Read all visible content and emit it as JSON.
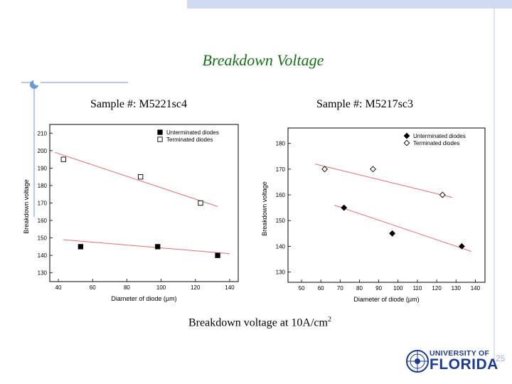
{
  "slide": {
    "title": "Breakdown Voltage",
    "sample_left": "Sample #: M5221sc4",
    "sample_right": "Sample #: M5217sc3",
    "caption_main": "Breakdown voltage at 10A/cm",
    "caption_sup": "2",
    "logo_line1": "UNIVERSITY OF",
    "logo_line2": "FLORIDA",
    "page_number": "25"
  },
  "colors": {
    "title": "#1a6e1a",
    "fit_line": "#e07070",
    "logo": "#1d3b8a",
    "accent": "#cfdcf0"
  },
  "chart_data": [
    {
      "type": "scatter",
      "xlabel": "Diameter of diode (μm)",
      "ylabel": "Breakdown voltage",
      "xlim": [
        35,
        145
      ],
      "ylim": [
        125,
        215
      ],
      "xticks": [
        40,
        60,
        80,
        100,
        120,
        140
      ],
      "yticks": [
        130,
        140,
        150,
        160,
        170,
        180,
        190,
        200,
        210
      ],
      "legend_position": "top-right",
      "series": [
        {
          "name": "Unterminated diodes",
          "marker": "filled-square",
          "x": [
            53,
            98,
            133
          ],
          "y": [
            145,
            145,
            140
          ],
          "fit": {
            "x": [
              43,
              140
            ],
            "y": [
              149,
              141
            ]
          }
        },
        {
          "name": "Terminated diodes",
          "marker": "open-square",
          "x": [
            43,
            88,
            123
          ],
          "y": [
            195,
            185,
            170
          ],
          "fit": {
            "x": [
              38,
              133
            ],
            "y": [
              199,
              168
            ]
          }
        }
      ]
    },
    {
      "type": "scatter",
      "xlabel": "Diameter of diode (μm)",
      "ylabel": "Breakdown voltage",
      "xlim": [
        43,
        145
      ],
      "ylim": [
        126,
        186
      ],
      "xticks": [
        50,
        60,
        70,
        80,
        90,
        100,
        110,
        120,
        130,
        140
      ],
      "yticks": [
        130,
        140,
        150,
        160,
        170,
        180
      ],
      "legend_position": "top-right",
      "series": [
        {
          "name": "Unterminated diodes",
          "marker": "filled-diamond",
          "x": [
            72,
            97,
            133
          ],
          "y": [
            155,
            145,
            140
          ],
          "fit": {
            "x": [
              67,
              138
            ],
            "y": [
              156,
              138
            ]
          }
        },
        {
          "name": "Terminated diodes",
          "marker": "open-diamond",
          "x": [
            62,
            87,
            123
          ],
          "y": [
            170,
            170,
            160
          ],
          "fit": {
            "x": [
              57,
              128
            ],
            "y": [
              172,
              159
            ]
          }
        }
      ]
    }
  ]
}
